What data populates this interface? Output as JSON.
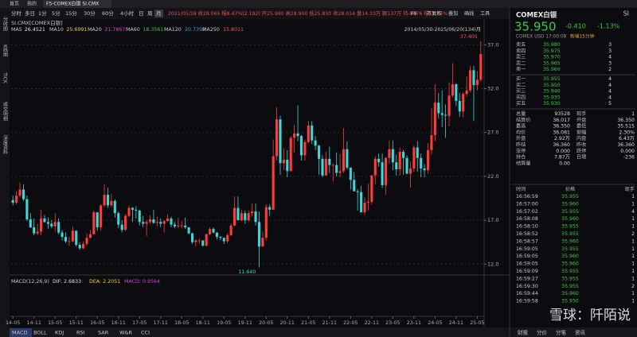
{
  "topbar": {
    "home": "首页",
    "mine": "我的",
    "tab": "F5-COMEX白银 SI.CMX"
  },
  "periods": [
    "分时",
    "多日",
    "1分",
    "5分",
    "15分",
    "30分",
    "60分",
    "4小时",
    "日",
    "周",
    "月"
  ],
  "selected_period": 10,
  "bar_info": "2021/05/28 收28.065 幅8.47%(2.192) 开25.990 高28.900 低25.850 收28.014 量14.33万 额137万 持-8876 幅11.74%",
  "tools": [
    "F9",
    "不复权",
    "叠加",
    "画线",
    "工具"
  ],
  "sidebar": [
    "分时图",
    "K线图",
    "TICK",
    "成交明细",
    "深度资料"
  ],
  "legend": {
    "symbol": "SI.CMX[COMEX白银]",
    "items": [
      {
        "name": "MA5",
        "value": "26.4521",
        "color": "#e0e0e0"
      },
      {
        "name": "MA10",
        "value": "25.6991",
        "color": "#e8d44d"
      },
      {
        "name": "MA20",
        "value": "21.7867",
        "color": "#d040d0"
      },
      {
        "name": "MA60",
        "value": "18.3561",
        "color": "#40c040"
      },
      {
        "name": "MA120",
        "value": "20.7392",
        "color": "#3aa0e0"
      },
      {
        "name": "MA250",
        "value": "15.8011",
        "color": "#e06060"
      }
    ],
    "range": "2014/05/30-2025/06/20(134)月"
  },
  "chart_data": {
    "type": "candlestick",
    "up_color": "#ff3b3b",
    "down_color": "#3ed6d6",
    "ylim": [
      11.3,
      38.3
    ],
    "yticks": [
      {
        "value": 12,
        "label": "12.0"
      },
      {
        "value": 17,
        "label": "17.0"
      },
      {
        "value": 22,
        "label": "22.0"
      },
      {
        "value": 27,
        "label": "27.0"
      },
      {
        "value": 32,
        "label": "32.0"
      },
      {
        "value": 37,
        "label": "37.0"
      }
    ],
    "categories": [
      "14-05",
      null,
      null,
      null,
      null,
      null,
      "14-11",
      null,
      null,
      null,
      null,
      null,
      "15-05",
      null,
      null,
      null,
      null,
      null,
      "15-11",
      null,
      null,
      null,
      null,
      null,
      "16-05",
      null,
      null,
      null,
      null,
      null,
      "16-11",
      null,
      null,
      null,
      null,
      null,
      "17-05",
      null,
      null,
      null,
      null,
      null,
      "17-11",
      null,
      null,
      null,
      null,
      null,
      "18-05",
      null,
      null,
      null,
      null,
      null,
      "18-11",
      null,
      null,
      null,
      null,
      null,
      "19-05",
      null,
      null,
      null,
      null,
      null,
      "19-11",
      null,
      null,
      null,
      null,
      null,
      "20-05",
      null,
      null,
      null,
      null,
      null,
      "20-11",
      null,
      null,
      null,
      null,
      null,
      "21-05",
      null,
      null,
      null,
      null,
      null,
      "21-11",
      null,
      null,
      null,
      null,
      null,
      "22-05",
      null,
      null,
      null,
      null,
      null,
      "22-11",
      null,
      null,
      null,
      null,
      null,
      "23-05",
      null,
      null,
      null,
      null,
      null,
      "23-11",
      null,
      null,
      null,
      null,
      null,
      "24-05",
      null,
      null,
      null,
      null,
      null,
      "24-11",
      null,
      null,
      null,
      null,
      null,
      "25-05",
      null
    ],
    "open": [
      19.3,
      19.0,
      19.8,
      20.5,
      19.4,
      17.1,
      16.2,
      15.5,
      15.7,
      17.2,
      16.8,
      16.6,
      16.3,
      16.8,
      15.6,
      15.1,
      14.6,
      14.6,
      15.8,
      14.2,
      13.8,
      14.3,
      15.0,
      15.4,
      17.9,
      16.2,
      18.7,
      19.9,
      18.7,
      19.2,
      17.8,
      16.5,
      15.9,
      17.5,
      18.4,
      18.2,
      18.1,
      16.8,
      16.6,
      16.8,
      17.1,
      16.7,
      16.8,
      16.6,
      16.9,
      17.2,
      16.5,
      16.3,
      16.4,
      16.4,
      16.2,
      15.5,
      14.5,
      14.7,
      14.7,
      14.1,
      15.4,
      16.0,
      15.6,
      15.1,
      15.0,
      14.6,
      15.3,
      16.4,
      18.4,
      17.0,
      17.8,
      17.0,
      17.8,
      18.0,
      16.8,
      14.0,
      15.0,
      18.5,
      18.2,
      24.3,
      28.5,
      23.5,
      23.9,
      22.6,
      26.4,
      26.9,
      26.6,
      24.4,
      25.9,
      27.8,
      26.1,
      25.5,
      24.0,
      22.1,
      24.0,
      23.3,
      23.3,
      22.4,
      22.6,
      25.1,
      23.0,
      21.6,
      20.3,
      20.2,
      17.9,
      19.0,
      19.1,
      22.1,
      24.0,
      23.6,
      21.0,
      24.1,
      25.1,
      23.6,
      22.8,
      24.8,
      24.1,
      22.3,
      22.9,
      25.3,
      24.1,
      22.9,
      22.7,
      25.0,
      26.7,
      30.4,
      29.2,
      29.0,
      28.9,
      31.2,
      32.5,
      30.6,
      29.4,
      31.4,
      31.8,
      34.1,
      32.4,
      33.0
    ],
    "high": [
      19.8,
      20.3,
      21.3,
      21.1,
      19.8,
      17.8,
      17.2,
      16.6,
      18.2,
      17.6,
      17.3,
      17.0,
      17.8,
      17.2,
      15.9,
      15.6,
      15.1,
      16.3,
      15.8,
      14.5,
      14.6,
      15.5,
      15.9,
      18.1,
      17.9,
      18.8,
      21.1,
      20.7,
      20.0,
      19.4,
      18.0,
      17.0,
      17.7,
      18.6,
      18.5,
      18.6,
      18.2,
      17.5,
      17.0,
      17.6,
      18.2,
      17.4,
      17.2,
      17.0,
      17.7,
      17.4,
      16.8,
      17.3,
      16.9,
      17.3,
      16.1,
      15.6,
      14.8,
      14.9,
      14.7,
      15.5,
      16.2,
      16.2,
      15.6,
      15.2,
      15.0,
      15.5,
      16.6,
      19.7,
      19.7,
      18.2,
      18.1,
      18.1,
      18.9,
      18.9,
      18.0,
      15.7,
      18.8,
      18.8,
      26.2,
      29.9,
      28.9,
      25.2,
      25.0,
      26.6,
      27.9,
      30.1,
      26.7,
      26.2,
      28.3,
      28.3,
      26.6,
      25.6,
      24.4,
      24.8,
      25.4,
      23.5,
      24.7,
      24.6,
      27.5,
      26.0,
      22.9,
      22.5,
      20.5,
      20.9,
      19.6,
      21.2,
      22.2,
      24.3,
      24.6,
      24.6,
      24.2,
      26.1,
      26.1,
      24.5,
      25.3,
      25.0,
      24.4,
      23.7,
      25.5,
      26.0,
      24.6,
      23.4,
      25.8,
      29.8,
      32.5,
      31.5,
      31.8,
      30.2,
      32.7,
      34.9,
      32.6,
      31.5,
      31.6,
      33.4,
      34.6,
      34.6,
      34.0,
      37.405
    ],
    "low": [
      18.7,
      18.8,
      19.6,
      19.2,
      16.9,
      16.1,
      15.3,
      15.3,
      15.3,
      16.7,
      16.0,
      16.1,
      15.7,
      15.4,
      14.7,
      14.4,
      14.1,
      14.5,
      14.0,
      13.6,
      13.7,
      14.1,
      14.9,
      15.4,
      15.8,
      15.8,
      18.5,
      18.4,
      18.5,
      17.3,
      16.1,
      15.6,
      15.8,
      17.4,
      16.8,
      17.2,
      16.4,
      16.2,
      15.2,
      16.6,
      16.6,
      16.3,
      16.2,
      15.6,
      16.8,
      16.2,
      16.1,
      16.1,
      16.1,
      16.0,
      15.4,
      14.3,
      14.0,
      14.3,
      14.0,
      14.0,
      15.3,
      15.5,
      14.8,
      14.7,
      14.3,
      14.4,
      15.2,
      16.3,
      17.0,
      16.9,
      16.6,
      16.8,
      17.4,
      16.4,
      11.64,
      14.0,
      14.7,
      17.5,
      18.2,
      23.8,
      22.2,
      22.7,
      21.9,
      22.6,
      24.7,
      26.0,
      23.8,
      23.8,
      25.8,
      25.7,
      25.0,
      22.2,
      21.9,
      22.1,
      22.4,
      21.4,
      22.0,
      21.9,
      22.4,
      22.8,
      20.5,
      20.3,
      18.1,
      17.9,
      17.6,
      18.1,
      18.8,
      21.1,
      23.1,
      20.7,
      19.9,
      23.5,
      22.7,
      22.1,
      22.1,
      22.2,
      22.3,
      20.7,
      22.5,
      22.5,
      21.9,
      21.9,
      22.3,
      24.5,
      26.0,
      28.6,
      27.6,
      26.4,
      27.7,
      31.0,
      30.0,
      28.8,
      28.7,
      31.1,
      31.6,
      28.3,
      31.8,
      32.8
    ],
    "close": [
      19.0,
      19.8,
      20.5,
      19.4,
      17.1,
      16.2,
      15.5,
      15.7,
      17.2,
      16.8,
      16.6,
      16.3,
      16.8,
      15.6,
      15.1,
      14.6,
      14.6,
      15.8,
      14.2,
      13.8,
      14.3,
      15.0,
      15.4,
      17.9,
      16.2,
      18.7,
      19.9,
      18.7,
      19.2,
      17.8,
      16.5,
      15.9,
      17.5,
      18.4,
      18.2,
      18.1,
      16.8,
      16.6,
      16.8,
      17.1,
      16.7,
      16.8,
      16.6,
      16.9,
      17.2,
      16.5,
      16.3,
      16.4,
      16.4,
      16.2,
      15.5,
      14.5,
      14.7,
      14.7,
      14.1,
      15.4,
      16.0,
      15.6,
      15.1,
      15.0,
      14.6,
      15.3,
      16.4,
      18.4,
      17.0,
      17.8,
      17.0,
      17.8,
      18.0,
      16.8,
      14.0,
      15.0,
      18.5,
      18.2,
      24.3,
      28.5,
      23.5,
      23.9,
      22.6,
      26.4,
      26.9,
      26.6,
      24.4,
      25.9,
      27.8,
      26.1,
      25.5,
      24.0,
      22.1,
      24.0,
      23.3,
      23.3,
      22.4,
      22.6,
      25.1,
      23.0,
      21.6,
      20.3,
      20.2,
      17.9,
      19.0,
      19.1,
      22.1,
      24.0,
      23.6,
      21.0,
      24.1,
      25.1,
      23.6,
      22.8,
      24.8,
      24.1,
      22.3,
      22.9,
      25.3,
      24.1,
      22.9,
      22.7,
      25.0,
      26.7,
      30.4,
      29.2,
      29.0,
      28.9,
      31.2,
      32.5,
      30.6,
      29.4,
      31.4,
      31.8,
      34.1,
      32.4,
      33.0,
      35.95
    ],
    "annotations": [
      {
        "text": "37.405",
        "value": 37.405,
        "index": 133
      },
      {
        "text": "11.640",
        "value": 11.64,
        "index": 70
      }
    ]
  },
  "macd": {
    "label": "MACD(12,26,9)",
    "dif": "DIF: 2.6833",
    "dea": "DEA: 2.2051",
    "macd": "MACD: 0.9564"
  },
  "indicator_tabs": [
    "MACD",
    "BOLL",
    "KDJ",
    "RSI",
    "SAR",
    "W&R",
    "CCI"
  ],
  "quote": {
    "name": "COMEX白银",
    "code": "SI",
    "price": "35.950",
    "change": "-0.410",
    "pct": "-1.13%",
    "sub": "COMEX  USD  17:00:08",
    "badge": "新增15分钟",
    "asks": [
      [
        "卖五",
        "35.980",
        "3"
      ],
      [
        "卖四",
        "35.975",
        "3"
      ],
      [
        "卖三",
        "35.970",
        "4"
      ],
      [
        "卖二",
        "35.965",
        "3"
      ],
      [
        "卖一",
        "35.960",
        "2"
      ]
    ],
    "bids": [
      [
        "买一",
        "35.955",
        "4"
      ],
      [
        "买二",
        "35.950",
        "4"
      ],
      [
        "买三",
        "35.940",
        "4"
      ],
      [
        "买四",
        "35.935",
        "4"
      ],
      [
        "买五",
        "35.930",
        "5"
      ]
    ],
    "stats": [
      [
        "总量",
        "93528",
        "现手",
        "1"
      ],
      [
        "结算价",
        "36.017",
        "开盘",
        "36.350"
      ],
      [
        "最高",
        "36.350",
        "最低",
        "35.515"
      ],
      [
        "均价",
        "36.081",
        "振幅",
        "2.30%"
      ],
      [
        "外盘",
        "2.92万",
        "内盘",
        "6.43万"
      ],
      [
        "昨结",
        "36.360",
        "昨收",
        "36.360"
      ],
      [
        "涨停",
        "0.000",
        "跌停",
        "0.000"
      ],
      [
        "持仓",
        "7.87万",
        "日增",
        "-236"
      ],
      [
        "结算量",
        "0.00",
        "",
        ""
      ]
    ],
    "ticks_header": [
      "时间",
      "价格",
      "现手"
    ],
    "ticks": [
      [
        "16:56:59",
        "35.955",
        "1"
      ],
      [
        "16:57:00",
        "35.960",
        "1"
      ],
      [
        "16:57:02",
        "35.955",
        "4"
      ],
      [
        "16:58:08",
        "35.960",
        "1"
      ],
      [
        "16:58:10",
        "35.955",
        "1"
      ],
      [
        "16:58:52",
        "35.955",
        "2"
      ],
      [
        "16:58:57",
        "35.960",
        "1"
      ],
      [
        "16:59:05",
        "35.955",
        "1"
      ],
      [
        "16:59:05",
        "35.960",
        "1"
      ],
      [
        "16:59:05",
        "35.960",
        "1"
      ],
      [
        "16:59:09",
        "35.955",
        "1"
      ],
      [
        "16:59:27",
        "35.955",
        "1"
      ],
      [
        "16:59:30",
        "35.955",
        "2"
      ],
      [
        "16:59:44",
        "35.960",
        "1"
      ],
      [
        "16:59:58",
        "35.950",
        "1"
      ]
    ],
    "bottom_tabs": [
      "财报",
      "分价",
      "分笔",
      "资讯"
    ]
  },
  "watermark": "雪球：阡陌说"
}
